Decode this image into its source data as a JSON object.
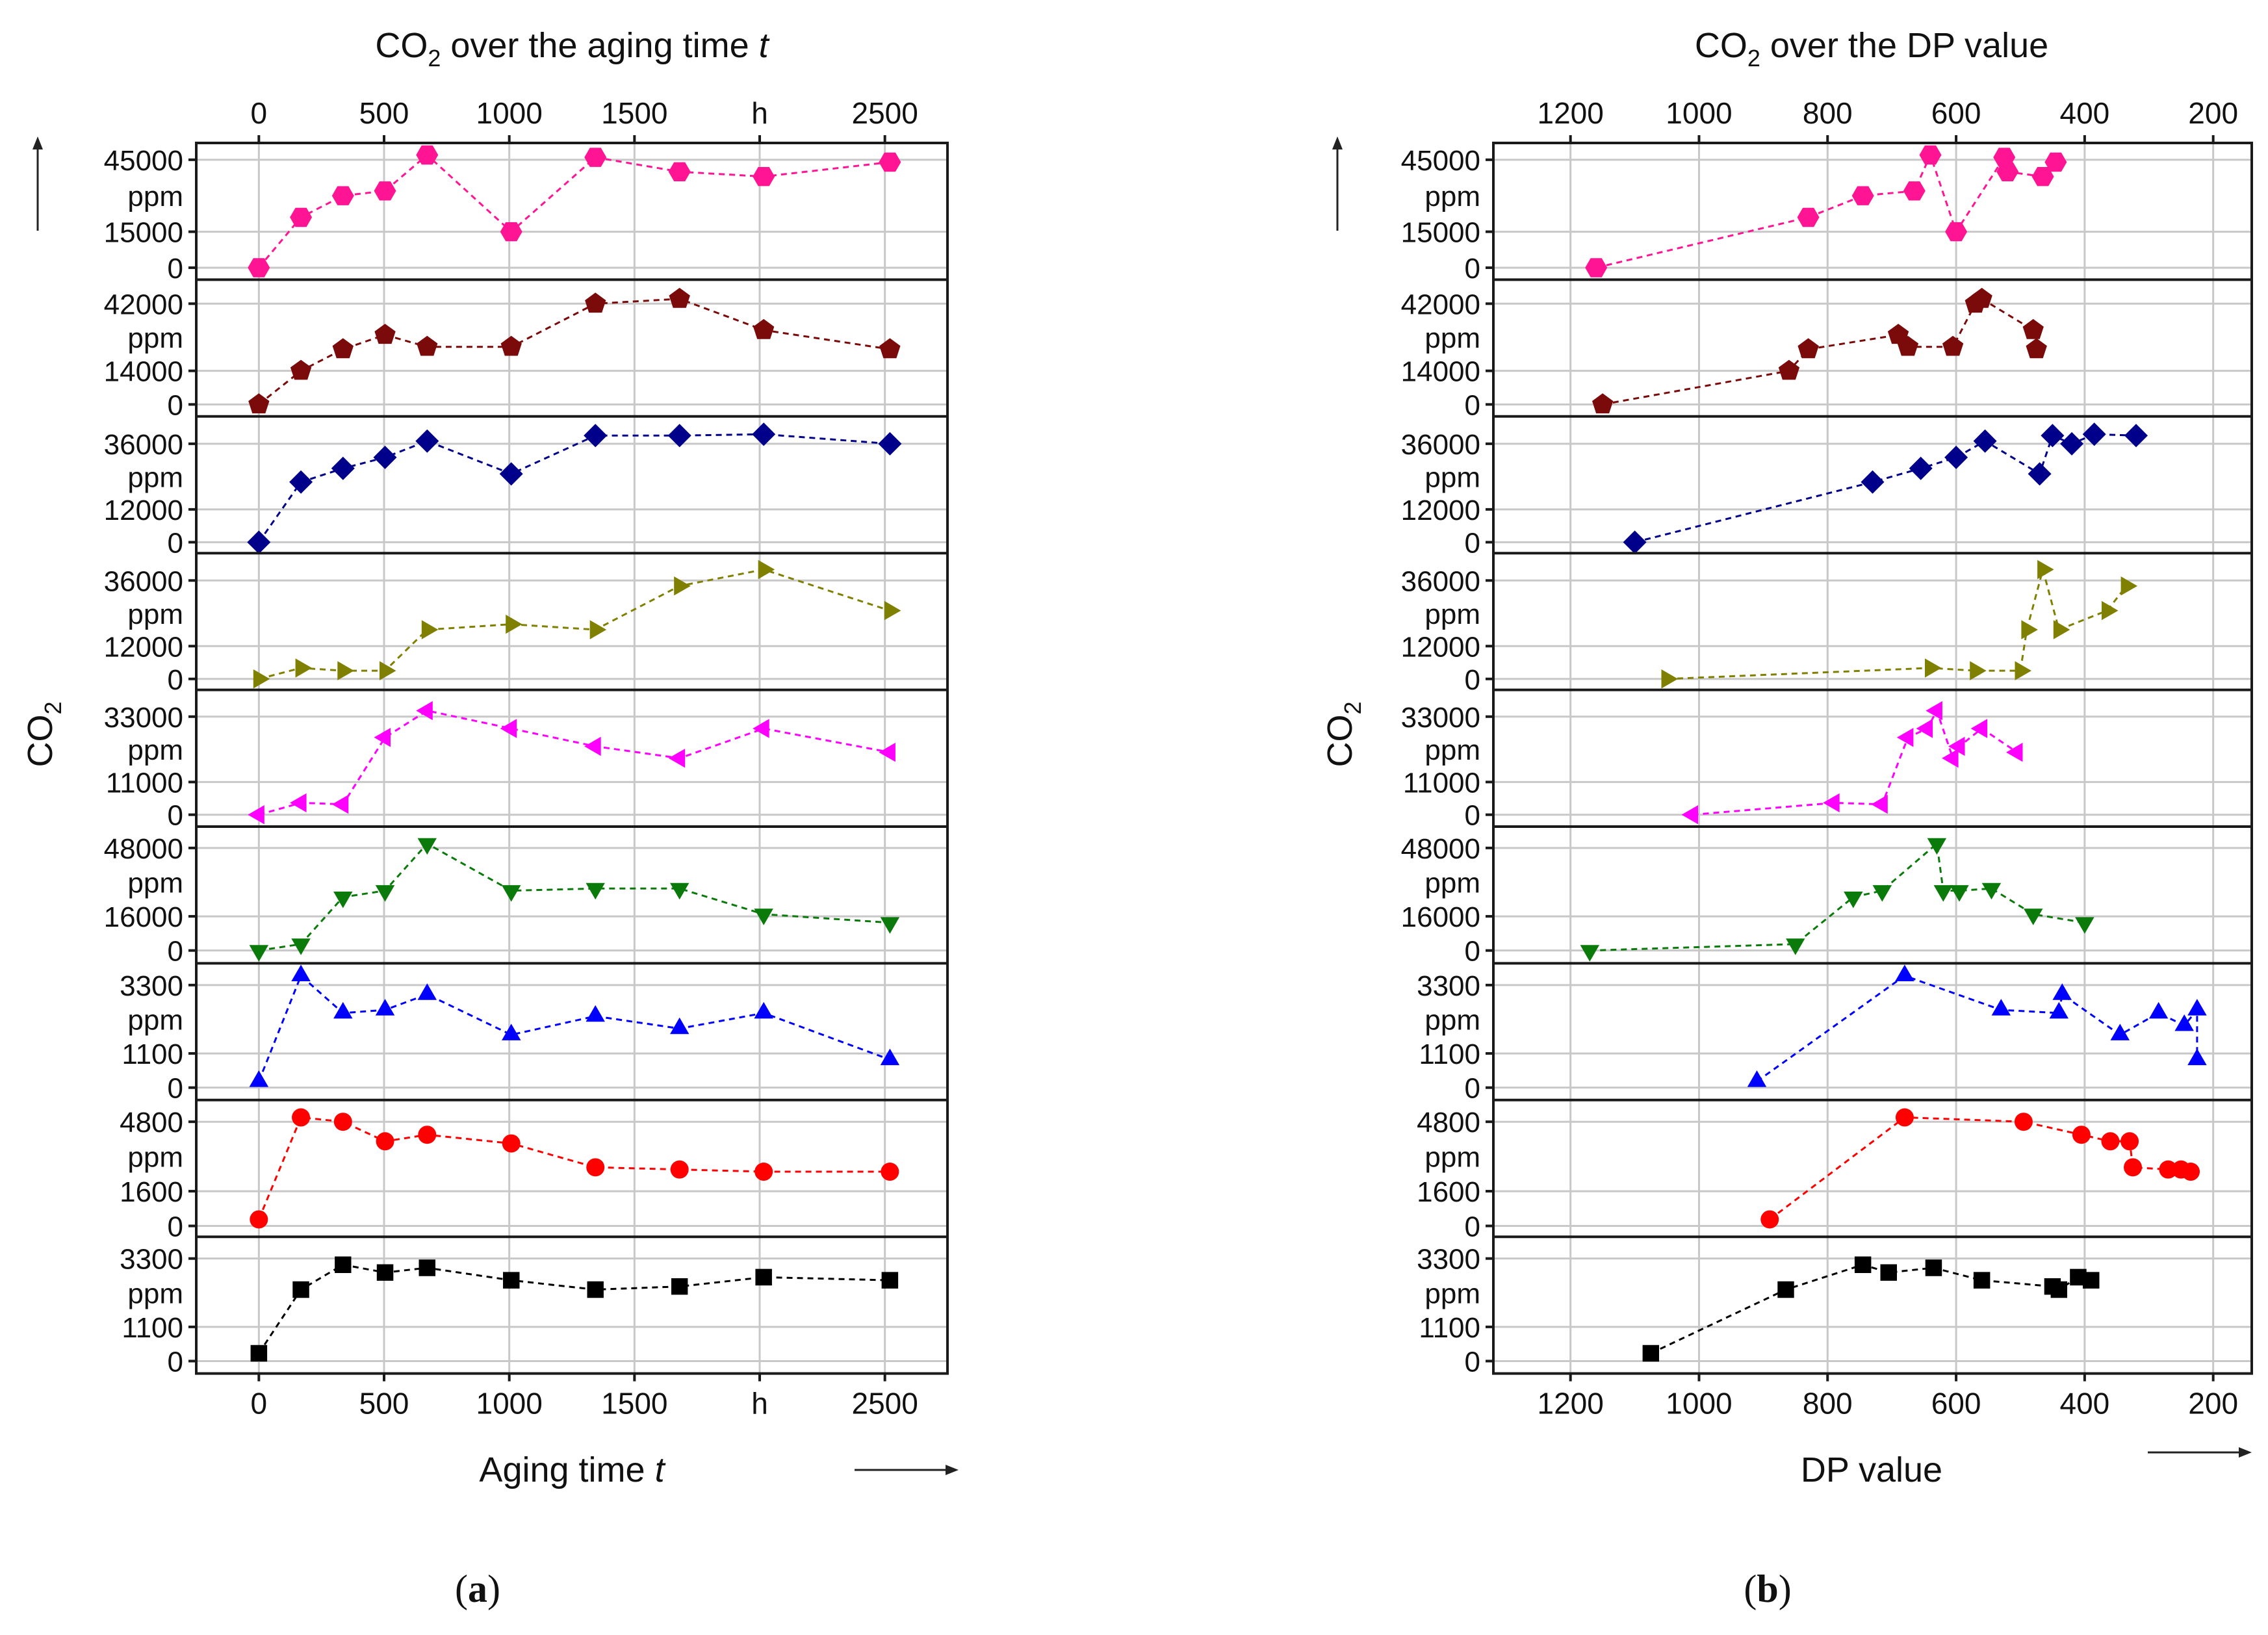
{
  "chart_data": [
    {
      "type": "scatter",
      "panel_label": "a",
      "title_prefix": "CO",
      "title_sub": "2",
      "title_suffix": " over the aging time ",
      "title_var": "t",
      "xlabel_text": "Aging time ",
      "xlabel_var": "t",
      "ylabel": "CO",
      "ylabel_sub": "2",
      "xlim": [
        -250,
        2750
      ],
      "xticks": [
        0,
        500,
        1000,
        1500,
        2000,
        2500
      ],
      "xtick_labels": [
        "0",
        "500",
        "1000",
        "1500",
        "h",
        "2500"
      ],
      "grid": true,
      "series": [
        {
          "name": "s1",
          "color": "#ff1493",
          "marker": "hexagon",
          "yticks": [
            0,
            15000,
            45000
          ],
          "ytick_labels": [
            "0",
            "15000",
            "45000"
          ],
          "yunit": "ppm",
          "ylim": [
            -5000,
            52000
          ],
          "x": [
            0,
            168,
            336,
            504,
            672,
            1008,
            1344,
            1680,
            2016,
            2520
          ],
          "y": [
            0,
            21000,
            30000,
            32000,
            47000,
            15000,
            46000,
            40000,
            38000,
            44000
          ]
        },
        {
          "name": "s2",
          "color": "#7b0a0a",
          "marker": "pentagon",
          "yticks": [
            0,
            14000,
            42000
          ],
          "ytick_labels": [
            "0",
            "14000",
            "42000"
          ],
          "yunit": "ppm",
          "ylim": [
            -5000,
            52000
          ],
          "x": [
            0,
            168,
            336,
            504,
            672,
            1008,
            1344,
            1680,
            2016,
            2520
          ],
          "y": [
            0,
            14000,
            23000,
            29000,
            24000,
            24000,
            42000,
            44000,
            31000,
            23000
          ]
        },
        {
          "name": "s3",
          "color": "#00008b",
          "marker": "diamond",
          "yticks": [
            0,
            12000,
            36000
          ],
          "ytick_labels": [
            "0",
            "12000",
            "36000"
          ],
          "yunit": "ppm",
          "ylim": [
            -4000,
            46000
          ],
          "x": [
            0,
            168,
            336,
            504,
            672,
            1008,
            1344,
            1680,
            2016,
            2520
          ],
          "y": [
            0,
            22000,
            27000,
            31000,
            37000,
            25000,
            39000,
            39000,
            39500,
            36000
          ]
        },
        {
          "name": "s4",
          "color": "#808000",
          "marker": "triangle-right",
          "yticks": [
            0,
            12000,
            36000
          ],
          "ytick_labels": [
            "0",
            "12000",
            "36000"
          ],
          "yunit": "ppm",
          "ylim": [
            -4000,
            46000
          ],
          "x": [
            0,
            168,
            336,
            504,
            672,
            1008,
            1344,
            1680,
            2016,
            2520
          ],
          "y": [
            0,
            4000,
            3000,
            3000,
            18000,
            20000,
            18000,
            34000,
            40000,
            25000
          ]
        },
        {
          "name": "s5",
          "color": "#ff00ff",
          "marker": "triangle-left",
          "yticks": [
            0,
            11000,
            33000
          ],
          "ytick_labels": [
            "0",
            "11000",
            "33000"
          ],
          "yunit": "ppm",
          "ylim": [
            -4000,
            42000
          ],
          "x": [
            0,
            168,
            336,
            504,
            672,
            1008,
            1344,
            1680,
            2016,
            2520
          ],
          "y": [
            0,
            4000,
            3500,
            26000,
            35000,
            29000,
            23000,
            19000,
            29000,
            21000
          ]
        },
        {
          "name": "s6",
          "color": "#0a7a0a",
          "marker": "triangle-down",
          "yticks": [
            0,
            16000,
            48000
          ],
          "ytick_labels": [
            "0",
            "16000",
            "48000"
          ],
          "yunit": "ppm",
          "ylim": [
            -6000,
            58000
          ],
          "x": [
            0,
            168,
            336,
            504,
            672,
            1008,
            1344,
            1680,
            2016,
            2520
          ],
          "y": [
            0,
            3000,
            25000,
            28000,
            50000,
            28000,
            29000,
            29000,
            17000,
            13000
          ]
        },
        {
          "name": "s7",
          "color": "#0000ff",
          "marker": "triangle-up",
          "yticks": [
            0,
            1100,
            3300
          ],
          "ytick_labels": [
            "0",
            "1100",
            "3300"
          ],
          "yunit": "ppm",
          "ylim": [
            -400,
            4000
          ],
          "x": [
            0,
            168,
            336,
            504,
            672,
            1008,
            1344,
            1680,
            2016,
            2520
          ],
          "y": [
            200,
            3600,
            2400,
            2500,
            3000,
            1700,
            2300,
            1900,
            2400,
            900
          ]
        },
        {
          "name": "s8",
          "color": "#ff0000",
          "marker": "circle",
          "yticks": [
            0,
            1600,
            4800
          ],
          "ytick_labels": [
            "0",
            "1600",
            "4800"
          ],
          "yunit": "ppm",
          "ylim": [
            -500,
            5800
          ],
          "x": [
            0,
            168,
            336,
            504,
            672,
            1008,
            1344,
            1680,
            2016,
            2520
          ],
          "y": [
            300,
            5000,
            4800,
            3900,
            4200,
            3800,
            2700,
            2600,
            2500,
            2500
          ]
        },
        {
          "name": "s9",
          "color": "#000000",
          "marker": "square",
          "yticks": [
            0,
            1100,
            3300
          ],
          "ytick_labels": [
            "0",
            "1100",
            "3300"
          ],
          "yunit": "ppm",
          "ylim": [
            -400,
            4000
          ],
          "x": [
            0,
            168,
            336,
            504,
            672,
            1008,
            1344,
            1680,
            2016,
            2520
          ],
          "y": [
            250,
            2300,
            3100,
            2850,
            3000,
            2600,
            2300,
            2400,
            2700,
            2600
          ]
        }
      ]
    },
    {
      "type": "scatter",
      "panel_label": "b",
      "title_prefix": "CO",
      "title_sub": "2",
      "title_suffix": " over the DP value",
      "title_var": "",
      "xlabel_text": "DP value",
      "xlabel_var": "",
      "ylabel": "CO",
      "ylabel_sub": "2",
      "xlim": [
        1320,
        140
      ],
      "xticks": [
        1200,
        1000,
        800,
        600,
        400,
        200
      ],
      "xtick_labels": [
        "1200",
        "1000",
        "800",
        "600",
        "400",
        "200"
      ],
      "grid": true,
      "series": [
        {
          "name": "s1",
          "color": "#ff1493",
          "marker": "hexagon",
          "yticks": [
            0,
            15000,
            45000
          ],
          "ytick_labels": [
            "0",
            "15000",
            "45000"
          ],
          "yunit": "ppm",
          "ylim": [
            -5000,
            52000
          ],
          "x": [
            1160,
            830,
            745,
            665,
            640,
            600,
            525,
            520,
            465,
            445
          ],
          "y": [
            0,
            21000,
            30000,
            32000,
            47000,
            15000,
            46000,
            40000,
            38000,
            44000
          ]
        },
        {
          "name": "s2",
          "color": "#7b0a0a",
          "marker": "pentagon",
          "yticks": [
            0,
            14000,
            42000
          ],
          "ytick_labels": [
            "0",
            "14000",
            "42000"
          ],
          "yunit": "ppm",
          "ylim": [
            -5000,
            52000
          ],
          "x": [
            1150,
            860,
            830,
            690,
            675,
            605,
            570,
            560,
            480,
            475
          ],
          "y": [
            0,
            14000,
            23000,
            29000,
            24000,
            24000,
            42000,
            44000,
            31000,
            23000
          ]
        },
        {
          "name": "s3",
          "color": "#00008b",
          "marker": "diamond",
          "yticks": [
            0,
            12000,
            36000
          ],
          "ytick_labels": [
            "0",
            "12000",
            "36000"
          ],
          "yunit": "ppm",
          "ylim": [
            -4000,
            46000
          ],
          "x": [
            1100,
            730,
            655,
            600,
            555,
            470,
            450,
            420,
            385,
            320
          ],
          "y": [
            0,
            22000,
            27000,
            31000,
            37000,
            25000,
            39000,
            36000,
            39500,
            39000
          ]
        },
        {
          "name": "s4",
          "color": "#808000",
          "marker": "triangle-right",
          "yticks": [
            0,
            12000,
            36000
          ],
          "ytick_labels": [
            "0",
            "12000",
            "36000"
          ],
          "yunit": "ppm",
          "ylim": [
            -4000,
            46000
          ],
          "x": [
            1050,
            640,
            570,
            500,
            490,
            465,
            440,
            365,
            335
          ],
          "y": [
            0,
            4000,
            3000,
            3000,
            18000,
            40000,
            18000,
            25000,
            34000
          ]
        },
        {
          "name": "s5",
          "color": "#ff00ff",
          "marker": "triangle-left",
          "yticks": [
            0,
            11000,
            33000
          ],
          "ytick_labels": [
            "0",
            "11000",
            "33000"
          ],
          "yunit": "ppm",
          "ylim": [
            -4000,
            42000
          ],
          "x": [
            1010,
            790,
            715,
            675,
            645,
            630,
            605,
            595,
            560,
            505
          ],
          "y": [
            0,
            4000,
            3500,
            26000,
            29000,
            35000,
            19000,
            23000,
            29000,
            21000
          ]
        },
        {
          "name": "s6",
          "color": "#0a7a0a",
          "marker": "triangle-down",
          "yticks": [
            0,
            16000,
            48000
          ],
          "ytick_labels": [
            "0",
            "16000",
            "48000"
          ],
          "yunit": "ppm",
          "ylim": [
            -6000,
            58000
          ],
          "x": [
            1170,
            850,
            760,
            715,
            630,
            620,
            595,
            545,
            480,
            400
          ],
          "y": [
            0,
            3000,
            25000,
            28000,
            50000,
            28000,
            28000,
            29000,
            17000,
            13000
          ]
        },
        {
          "name": "s7",
          "color": "#0000ff",
          "marker": "triangle-up",
          "yticks": [
            0,
            1100,
            3300
          ],
          "ytick_labels": [
            "0",
            "1100",
            "3300"
          ],
          "yunit": "ppm",
          "ylim": [
            -400,
            4000
          ],
          "x": [
            910,
            680,
            530,
            440,
            435,
            345,
            285,
            245,
            225,
            225
          ],
          "y": [
            200,
            3600,
            2500,
            2400,
            3000,
            1700,
            2400,
            2000,
            2500,
            900
          ]
        },
        {
          "name": "s8",
          "color": "#ff0000",
          "marker": "circle",
          "yticks": [
            0,
            1600,
            4800
          ],
          "ytick_labels": [
            "0",
            "1600",
            "4800"
          ],
          "yunit": "ppm",
          "ylim": [
            -500,
            5800
          ],
          "x": [
            890,
            680,
            495,
            405,
            360,
            330,
            325,
            270,
            250,
            235
          ],
          "y": [
            300,
            5000,
            4800,
            4200,
            3900,
            3900,
            2700,
            2600,
            2600,
            2500
          ]
        },
        {
          "name": "s9",
          "color": "#000000",
          "marker": "square",
          "yticks": [
            0,
            1100,
            3300
          ],
          "ytick_labels": [
            "0",
            "1100",
            "3300"
          ],
          "yunit": "ppm",
          "ylim": [
            -400,
            4000
          ],
          "x": [
            1075,
            865,
            745,
            705,
            635,
            560,
            450,
            440,
            410,
            390
          ],
          "y": [
            250,
            2300,
            3100,
            2850,
            3000,
            2600,
            2400,
            2300,
            2700,
            2600
          ]
        }
      ]
    }
  ]
}
